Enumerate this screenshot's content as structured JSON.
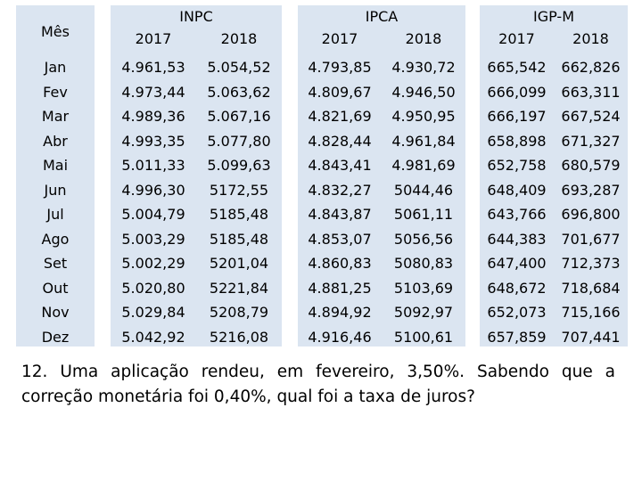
{
  "table": {
    "month_header": "Mês",
    "months": [
      "Jan",
      "Fev",
      "Mar",
      "Abr",
      "Mai",
      "Jun",
      "Jul",
      "Ago",
      "Set",
      "Out",
      "Nov",
      "Dez"
    ],
    "groups": [
      {
        "name": "INPC",
        "years": [
          "2017",
          "2018"
        ],
        "values": [
          [
            "4.961,53",
            "5.054,52"
          ],
          [
            "4.973,44",
            "5.063,62"
          ],
          [
            "4.989,36",
            "5.067,16"
          ],
          [
            "4.993,35",
            "5.077,80"
          ],
          [
            "5.011,33",
            "5.099,63"
          ],
          [
            "4.996,30",
            "5172,55"
          ],
          [
            "5.004,79",
            "5185,48"
          ],
          [
            "5.003,29",
            "5185,48"
          ],
          [
            "5.002,29",
            "5201,04"
          ],
          [
            "5.020,80",
            "5221,84"
          ],
          [
            "5.029,84",
            "5208,79"
          ],
          [
            "5.042,92",
            "5216,08"
          ]
        ]
      },
      {
        "name": "IPCA",
        "years": [
          "2017",
          "2018"
        ],
        "values": [
          [
            "4.793,85",
            "4.930,72"
          ],
          [
            "4.809,67",
            "4.946,50"
          ],
          [
            "4.821,69",
            "4.950,95"
          ],
          [
            "4.828,44",
            "4.961,84"
          ],
          [
            "4.843,41",
            "4.981,69"
          ],
          [
            "4.832,27",
            "5044,46"
          ],
          [
            "4.843,87",
            "5061,11"
          ],
          [
            "4.853,07",
            "5056,56"
          ],
          [
            "4.860,83",
            "5080,83"
          ],
          [
            "4.881,25",
            "5103,69"
          ],
          [
            "4.894,92",
            "5092,97"
          ],
          [
            "4.916,46",
            "5100,61"
          ]
        ]
      },
      {
        "name": "IGP-M",
        "years": [
          "2017",
          "2018"
        ],
        "values": [
          [
            "665,542",
            "662,826"
          ],
          [
            "666,099",
            "663,311"
          ],
          [
            "666,197",
            "667,524"
          ],
          [
            "658,898",
            "671,327"
          ],
          [
            "652,758",
            "680,579"
          ],
          [
            "648,409",
            "693,287"
          ],
          [
            "643,766",
            "696,800"
          ],
          [
            "644,383",
            "701,677"
          ],
          [
            "647,400",
            "712,373"
          ],
          [
            "648,672",
            "718,684"
          ],
          [
            "652,073",
            "715,166"
          ],
          [
            "657,859",
            "707,441"
          ]
        ]
      }
    ]
  },
  "question": {
    "number": "12.",
    "text": "Uma aplicação rendeu, em fevereiro, 3,50%. Sabendo que a correção monetária foi 0,40%, qual foi a taxa de juros?"
  }
}
